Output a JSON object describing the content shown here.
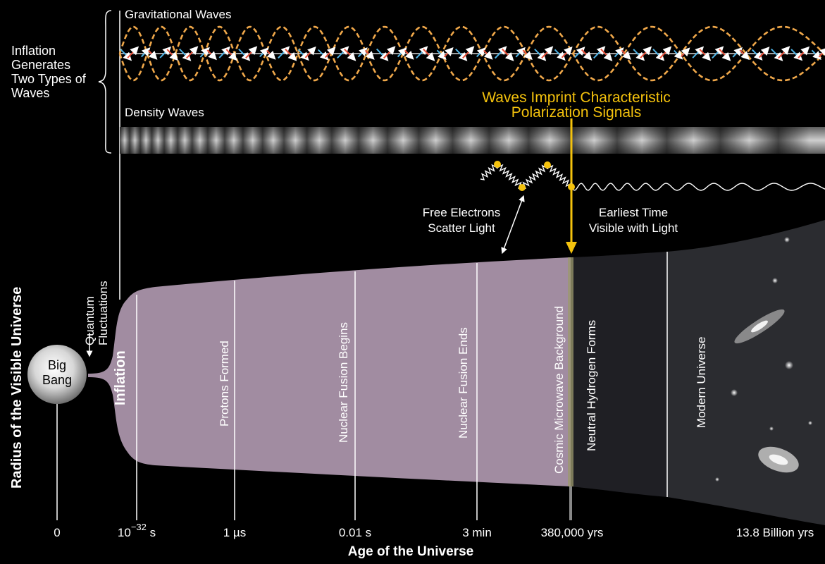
{
  "waves": {
    "gravitational_label": "Gravitational Waves",
    "density_label": "Density Waves",
    "inflation_note": [
      "Inflation",
      "Generates",
      "Two Types of",
      "Waves"
    ]
  },
  "callouts": {
    "imprint": [
      "Waves Imprint Characteristic",
      "Polarization Signals"
    ],
    "scatter": [
      "Free Electrons",
      "Scatter Light"
    ],
    "earliest": [
      "Earliest Time",
      "Visible with Light"
    ]
  },
  "origin": {
    "big_bang": [
      "Big",
      "Bang"
    ],
    "quantum": [
      "Quantum",
      "Fluctuations"
    ]
  },
  "epochs": {
    "inflation": "Inflation",
    "protons": "Protons Formed",
    "fusion_begins": "Nuclear Fusion Begins",
    "fusion_ends": "Nuclear Fusion Ends",
    "cmb": "Cosmic Microwave Background",
    "neutral_h": "Neutral Hydrogen Forms",
    "modern": "Modern Universe"
  },
  "axis": {
    "x_title": "Age of the Universe",
    "y_title": "Radius of the Visible Universe",
    "ticks": {
      "zero": "0",
      "planck_base": "10",
      "planck_exp": "−32",
      "planck_unit": " s",
      "micro": "1 µs",
      "centi": "0.01 s",
      "minutes": "3 min",
      "recomb": "380,000 yrs",
      "now": "13.8 Billion yrs"
    }
  },
  "colors": {
    "gold": "#f4c20d",
    "wave_orange": "#f0a84a",
    "arrow_blue": "#4fb4e6",
    "arrow_red": "#e8503a"
  }
}
